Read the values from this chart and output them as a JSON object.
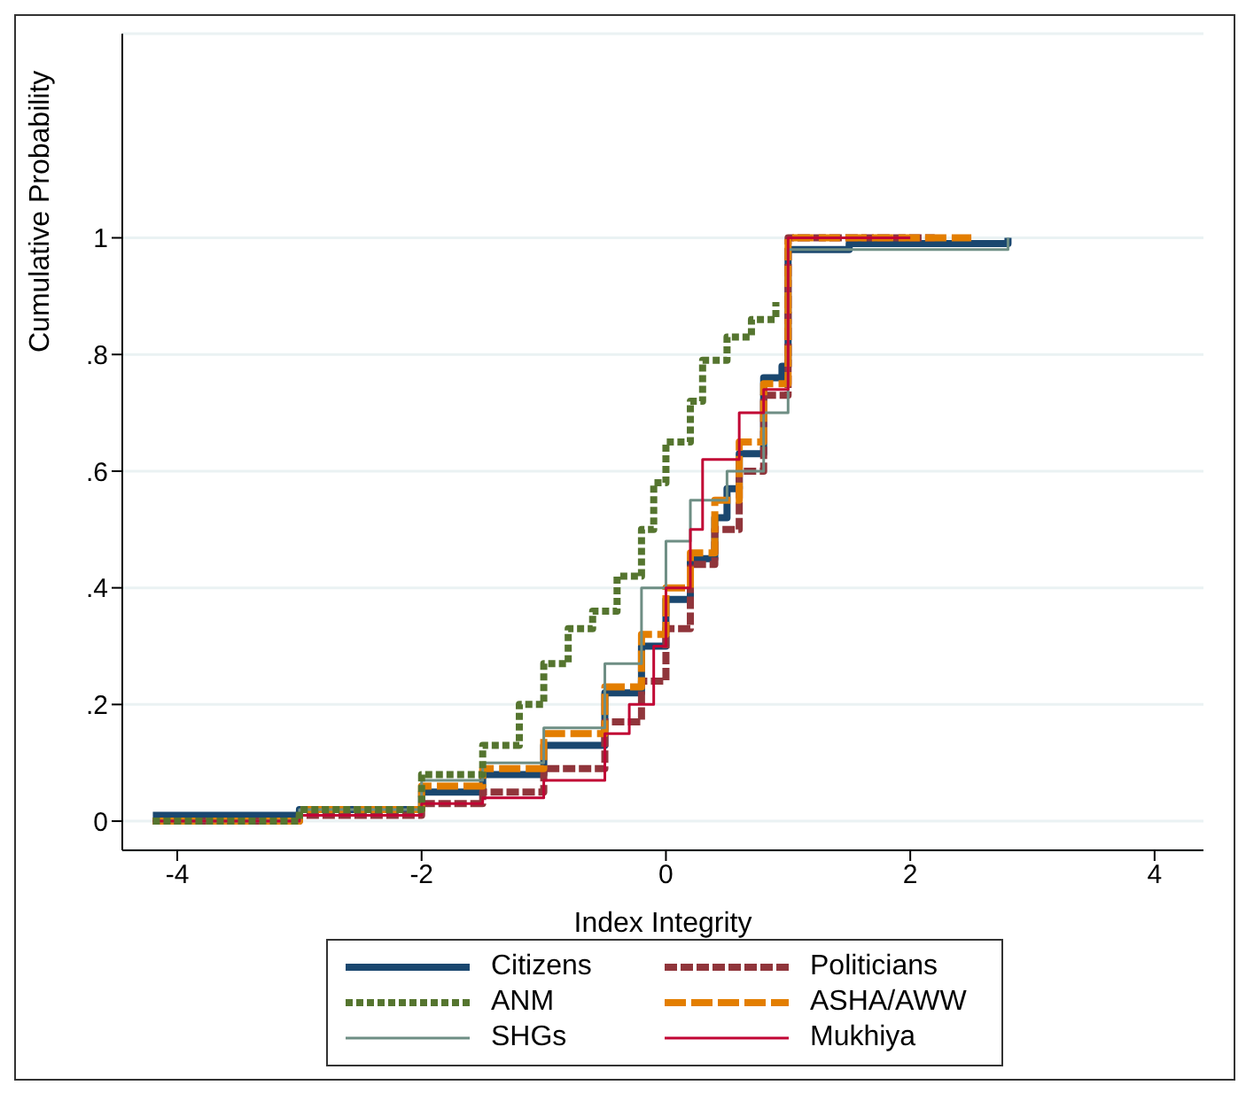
{
  "chart_data": {
    "type": "step",
    "xlabel": "Index Integrity",
    "ylabel": "Cumulative Probability",
    "xlim": [
      -4.45,
      4.4
    ],
    "xticks": [
      -4,
      -2,
      0,
      2,
      4
    ],
    "ylim": [
      -0.05,
      1.35
    ],
    "yticks": [
      0,
      {
        "value": 0.2,
        "label": ".2"
      },
      {
        "value": 0.4,
        "label": ".4"
      },
      {
        "value": 0.6,
        "label": ".6"
      },
      {
        "value": 0.8,
        "label": ".8"
      },
      1
    ],
    "grid": "y",
    "legend": "bottom",
    "marker": "none",
    "series": [
      {
        "name": "Citizens",
        "color": "#1a476f",
        "line_style": "solid",
        "x": [
          -4.2,
          -3,
          -2,
          -1.5,
          -1,
          -0.5,
          -0.2,
          0,
          0.2,
          0.4,
          0.5,
          0.6,
          0.8,
          0.95,
          1,
          1.5,
          2.8
        ],
        "values": [
          0.01,
          0.02,
          0.05,
          0.08,
          0.13,
          0.22,
          0.3,
          0.38,
          0.45,
          0.52,
          0.57,
          0.63,
          0.76,
          0.78,
          0.98,
          0.99,
          1
        ]
      },
      {
        "name": "Politicians",
        "color": "#90353b",
        "line_style": "dashed",
        "x": [
          -4.2,
          -3,
          -2,
          -1.5,
          -1,
          -0.5,
          -0.2,
          0,
          0.2,
          0.4,
          0.6,
          0.8,
          1,
          2.2
        ],
        "values": [
          0,
          0.01,
          0.03,
          0.05,
          0.09,
          0.17,
          0.24,
          0.33,
          0.44,
          0.5,
          0.6,
          0.73,
          1,
          1
        ]
      },
      {
        "name": "ANM",
        "color": "#55752f",
        "line_style": "dotted",
        "x": [
          -4.2,
          -3,
          -2,
          -1.5,
          -1.2,
          -1,
          -0.8,
          -0.6,
          -0.4,
          -0.2,
          -0.1,
          0,
          0.2,
          0.3,
          0.5,
          0.7,
          0.9
        ],
        "values": [
          0,
          0.02,
          0.08,
          0.13,
          0.2,
          0.27,
          0.33,
          0.36,
          0.42,
          0.5,
          0.58,
          0.65,
          0.72,
          0.79,
          0.83,
          0.86,
          0.89
        ]
      },
      {
        "name": "ASHA/AWW",
        "color": "#e37e00",
        "line_style": "dashed",
        "x": [
          -4.2,
          -3,
          -2,
          -1.5,
          -1,
          -0.5,
          -0.2,
          0,
          0.2,
          0.4,
          0.6,
          0.8,
          1,
          2.5
        ],
        "values": [
          0,
          0.02,
          0.06,
          0.09,
          0.15,
          0.23,
          0.32,
          0.4,
          0.46,
          0.55,
          0.65,
          0.75,
          1,
          1
        ]
      },
      {
        "name": "SHGs",
        "color": "#6e8e84",
        "line_style": "solid",
        "x": [
          -4.2,
          -3,
          -2,
          -1.5,
          -1,
          -0.5,
          -0.2,
          0,
          0.2,
          0.5,
          0.8,
          1,
          2.8
        ],
        "values": [
          0,
          0.02,
          0.07,
          0.1,
          0.16,
          0.27,
          0.4,
          0.48,
          0.55,
          0.6,
          0.7,
          0.98,
          1
        ]
      },
      {
        "name": "Mukhiya",
        "color": "#c10534",
        "line_style": "solid",
        "x": [
          -4.2,
          -3,
          -2,
          -1.5,
          -1,
          -0.5,
          -0.3,
          -0.1,
          0,
          0.2,
          0.3,
          0.6,
          0.8,
          1,
          2
        ],
        "values": [
          0,
          0.01,
          0.03,
          0.04,
          0.07,
          0.15,
          0.2,
          0.3,
          0.4,
          0.5,
          0.62,
          0.7,
          0.74,
          1,
          1
        ]
      }
    ]
  }
}
